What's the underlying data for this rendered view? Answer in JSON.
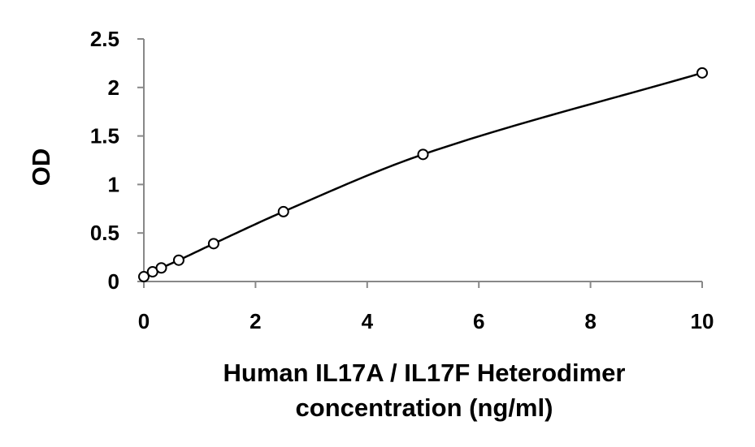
{
  "chart_data": {
    "type": "scatter",
    "title": "",
    "xlabel_lines": [
      "Human IL17A / IL17F Heterodimer",
      "concentration (ng/ml)"
    ],
    "ylabel": "OD",
    "xlim": [
      0,
      10
    ],
    "ylim": [
      0,
      2.5
    ],
    "x_ticks": [
      0,
      2,
      4,
      6,
      8,
      10
    ],
    "y_ticks": [
      0,
      0.5,
      1,
      1.5,
      2,
      2.5
    ],
    "x_tick_labels": [
      "0",
      "2",
      "4",
      "6",
      "8",
      "10"
    ],
    "y_tick_labels": [
      "0",
      "0.5",
      "1",
      "1.5",
      "2",
      "2.5"
    ],
    "grid": false,
    "legend": "none",
    "series": [
      {
        "points": [
          {
            "x": 0,
            "y": 0.05
          },
          {
            "x": 0.156,
            "y": 0.1
          },
          {
            "x": 0.313,
            "y": 0.14
          },
          {
            "x": 0.625,
            "y": 0.22
          },
          {
            "x": 1.25,
            "y": 0.39
          },
          {
            "x": 2.5,
            "y": 0.72
          },
          {
            "x": 5,
            "y": 1.31
          },
          {
            "x": 10,
            "y": 2.15
          }
        ],
        "fit_line": true,
        "marker": "open-circle",
        "color": "#000000"
      }
    ]
  }
}
